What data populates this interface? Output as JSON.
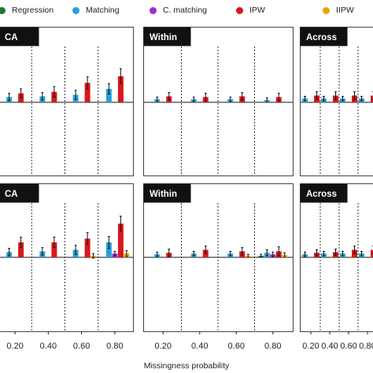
{
  "chart_data": {
    "type": "bar",
    "legend": [
      {
        "name": "Regression",
        "color": "#1a7a2e"
      },
      {
        "name": "Matching",
        "color": "#2a9fd6"
      },
      {
        "name": "C. matching",
        "color": "#9b2fd1"
      },
      {
        "name": "IPW",
        "color": "#d7191c"
      },
      {
        "name": "IIPW",
        "color": "#f0a30a"
      }
    ],
    "categories": [
      "0.20",
      "0.40",
      "0.60",
      "0.80"
    ],
    "xlabel": "Missingness probability",
    "ylim": [
      -0.25,
      0.9
    ],
    "panels": [
      {
        "title": "CA",
        "row": 0,
        "col": 0,
        "series": [
          {
            "name": "Regression",
            "values": [
              0.0,
              0.0,
              0.0,
              0.0
            ],
            "errors": [
              0.0,
              0.0,
              0.0,
              0.0
            ]
          },
          {
            "name": "Matching",
            "values": [
              0.07,
              0.08,
              0.1,
              0.18
            ],
            "errors": [
              0.05,
              0.05,
              0.06,
              0.07
            ]
          },
          {
            "name": "C. matching",
            "values": [
              0.0,
              0.0,
              0.0,
              0.0
            ],
            "errors": [
              0.0,
              0.0,
              0.0,
              0.0
            ]
          },
          {
            "name": "IPW",
            "values": [
              0.12,
              0.14,
              0.26,
              0.35
            ],
            "errors": [
              0.06,
              0.07,
              0.08,
              0.1
            ]
          },
          {
            "name": "IIPW",
            "values": [
              0.0,
              0.0,
              0.0,
              0.0
            ],
            "errors": [
              0.0,
              0.0,
              0.0,
              0.0
            ]
          }
        ]
      },
      {
        "title": "Within",
        "row": 0,
        "col": 1,
        "series": [
          {
            "name": "Regression",
            "values": [
              0.0,
              0.0,
              0.0,
              0.0
            ],
            "errors": [
              0.0,
              0.0,
              0.0,
              0.0
            ]
          },
          {
            "name": "Matching",
            "values": [
              0.04,
              0.04,
              0.04,
              0.03
            ],
            "errors": [
              0.03,
              0.03,
              0.03,
              0.03
            ]
          },
          {
            "name": "C. matching",
            "values": [
              0.0,
              0.0,
              0.0,
              0.0
            ],
            "errors": [
              0.0,
              0.0,
              0.0,
              0.0
            ]
          },
          {
            "name": "IPW",
            "values": [
              0.08,
              0.07,
              0.08,
              0.07
            ],
            "errors": [
              0.05,
              0.05,
              0.05,
              0.05
            ]
          },
          {
            "name": "IIPW",
            "values": [
              0.0,
              0.0,
              0.0,
              0.0
            ],
            "errors": [
              0.0,
              0.0,
              0.0,
              0.0
            ]
          }
        ]
      },
      {
        "title": "Across",
        "row": 0,
        "col": 2,
        "series": [
          {
            "name": "Regression",
            "values": [
              0.0,
              0.0,
              0.0,
              0.0
            ],
            "errors": [
              0.0,
              0.0,
              0.0,
              0.0
            ]
          },
          {
            "name": "Matching",
            "values": [
              0.05,
              0.05,
              0.05,
              0.05
            ],
            "errors": [
              0.03,
              0.03,
              0.03,
              0.03
            ]
          },
          {
            "name": "C. matching",
            "values": [
              0.0,
              0.0,
              0.0,
              0.0
            ],
            "errors": [
              0.0,
              0.0,
              0.0,
              0.0
            ]
          },
          {
            "name": "IPW",
            "values": [
              0.09,
              0.09,
              0.09,
              0.09
            ],
            "errors": [
              0.05,
              0.05,
              0.05,
              0.05
            ]
          },
          {
            "name": "IIPW",
            "values": [
              0.0,
              0.0,
              0.0,
              0.0
            ],
            "errors": [
              0.0,
              0.0,
              0.0,
              0.0
            ]
          }
        ]
      },
      {
        "title": "CA",
        "row": 1,
        "col": 0,
        "series": [
          {
            "name": "Regression",
            "values": [
              0.0,
              0.0,
              0.0,
              0.0
            ],
            "errors": [
              0.0,
              0.0,
              0.0,
              0.0
            ]
          },
          {
            "name": "Matching",
            "values": [
              0.07,
              0.08,
              0.1,
              0.2
            ],
            "errors": [
              0.05,
              0.05,
              0.06,
              0.08
            ]
          },
          {
            "name": "C. matching",
            "values": [
              0.0,
              0.0,
              0.0,
              0.05
            ],
            "errors": [
              0.0,
              0.0,
              0.0,
              0.03
            ]
          },
          {
            "name": "IPW",
            "values": [
              0.2,
              0.2,
              0.25,
              0.45
            ],
            "errors": [
              0.07,
              0.07,
              0.08,
              0.1
            ]
          },
          {
            "name": "IIPW",
            "values": [
              0.0,
              0.0,
              0.02,
              0.05
            ],
            "errors": [
              0.0,
              0.0,
              0.03,
              0.04
            ]
          }
        ]
      },
      {
        "title": "Within",
        "row": 1,
        "col": 1,
        "series": [
          {
            "name": "Regression",
            "values": [
              0.0,
              0.0,
              0.0,
              0.02
            ],
            "errors": [
              0.0,
              0.0,
              0.0,
              0.02
            ]
          },
          {
            "name": "Matching",
            "values": [
              0.04,
              0.05,
              0.05,
              0.06
            ],
            "errors": [
              0.03,
              0.03,
              0.03,
              0.04
            ]
          },
          {
            "name": "C. matching",
            "values": [
              0.0,
              0.0,
              0.0,
              0.04
            ],
            "errors": [
              0.0,
              0.0,
              0.0,
              0.03
            ]
          },
          {
            "name": "IPW",
            "values": [
              0.06,
              0.1,
              0.08,
              0.08
            ],
            "errors": [
              0.05,
              0.05,
              0.05,
              0.06
            ]
          },
          {
            "name": "IIPW",
            "values": [
              0.0,
              0.0,
              0.02,
              0.03
            ],
            "errors": [
              0.0,
              0.0,
              0.02,
              0.03
            ]
          }
        ]
      },
      {
        "title": "Across",
        "row": 1,
        "col": 2,
        "series": [
          {
            "name": "Regression",
            "values": [
              0.0,
              0.0,
              0.0,
              0.0
            ],
            "errors": [
              0.0,
              0.0,
              0.0,
              0.0
            ]
          },
          {
            "name": "Matching",
            "values": [
              0.04,
              0.05,
              0.05,
              0.05
            ],
            "errors": [
              0.03,
              0.03,
              0.03,
              0.03
            ]
          },
          {
            "name": "C. matching",
            "values": [
              0.0,
              0.0,
              0.0,
              0.0
            ],
            "errors": [
              0.0,
              0.0,
              0.0,
              0.0
            ]
          },
          {
            "name": "IPW",
            "values": [
              0.06,
              0.07,
              0.1,
              0.1
            ],
            "errors": [
              0.04,
              0.04,
              0.05,
              0.05
            ]
          },
          {
            "name": "IIPW",
            "values": [
              0.0,
              0.0,
              0.0,
              0.0
            ],
            "errors": [
              0.0,
              0.0,
              0.0,
              0.0
            ]
          }
        ]
      }
    ]
  }
}
